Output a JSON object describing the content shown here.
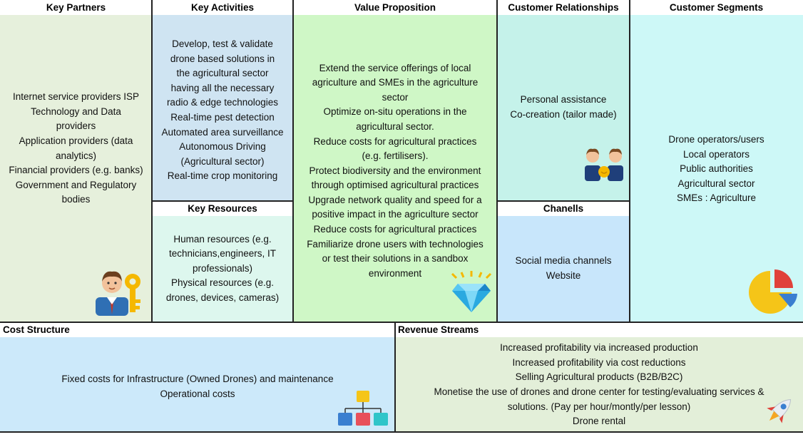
{
  "key_partners": {
    "title": "Key Partners",
    "lines": [
      "Internet service providers ISP",
      "Technology and Data",
      "providers",
      "Application providers (data",
      "analytics)",
      "Financial providers (e.g. banks)",
      "Government and Regulatory",
      "bodies"
    ],
    "icon": "businessman-key-icon"
  },
  "key_activities": {
    "title": "Key Activities",
    "lines": [
      "Develop, test & validate",
      "drone based solutions in",
      "the agricultural sector",
      "having all the necessary",
      "radio & edge technologies",
      "Real-time pest detection",
      "Automated area surveillance",
      "Autonomous Driving",
      "(Agricultural sector)",
      "Real-time crop monitoring"
    ]
  },
  "key_resources": {
    "title": "Key Resources",
    "lines": [
      "Human resources (e.g.",
      "technicians,engineers, IT",
      "professionals)",
      "Physical resources (e.g.",
      "drones, devices, cameras)"
    ]
  },
  "value_proposition": {
    "title": "Value Proposition",
    "lines": [
      "Extend the service offerings of local",
      "agriculture and SMEs in the agriculture",
      "sector",
      "Optimize on-situ operations in the",
      "agricultural sector.",
      "Reduce costs for agricultural practices",
      "(e.g. fertilisers).",
      "Protect biodiversity and the environment",
      "through optimised agricultural practices",
      "Upgrade network quality and speed for a",
      "positive impact in the agriculture sector",
      "Reduce costs for agricultural practices",
      "Familiarize drone users with technologies",
      "or test their solutions in a sandbox",
      "environment"
    ],
    "icon": "diamond-icon"
  },
  "customer_relationships": {
    "title": "Customer Relationships",
    "lines": [
      "Personal assistance",
      "Co-creation (tailor made)"
    ],
    "icon": "handshake-icon"
  },
  "channels": {
    "title": "Chanells",
    "lines": [
      "Social media channels",
      "Website"
    ]
  },
  "customer_segments": {
    "title": "Customer Segments",
    "lines": [
      "Drone operators/users",
      "Local operators",
      "Public authorities",
      "Agricultural sector",
      "SMEs : Agriculture"
    ],
    "icon": "pie-chart-icon"
  },
  "cost_structure": {
    "title": "Cost Structure",
    "lines": [
      "Fixed costs for Infrastructure (Owned Drones) and maintenance",
      "Operational costs"
    ],
    "icon": "org-chart-icon"
  },
  "revenue_streams": {
    "title": "Revenue Streams",
    "lines": [
      "Increased profitability via increased production",
      "Increased profitability via cost reductions",
      "Selling Agricultural products (B2B/B2C)",
      "Monetise the use of drones and drone center for testing/evaluating services &",
      "solutions.  (Pay per hour/montly/per lesson)",
      "Drone rental"
    ],
    "icon": "rocket-icon"
  },
  "colors": {
    "key_partners_bg": "#e6f0dc",
    "key_activities_bg": "#cfe4f2",
    "key_resources_bg": "#ddf7ee",
    "value_proposition_bg": "#cff7c6",
    "customer_relationships_bg": "#c5f2ea",
    "channels_bg": "#c8e6fb",
    "customer_segments_bg": "#cdf8f7",
    "cost_structure_bg": "#cce9fa",
    "revenue_streams_bg": "#e3efd9"
  }
}
